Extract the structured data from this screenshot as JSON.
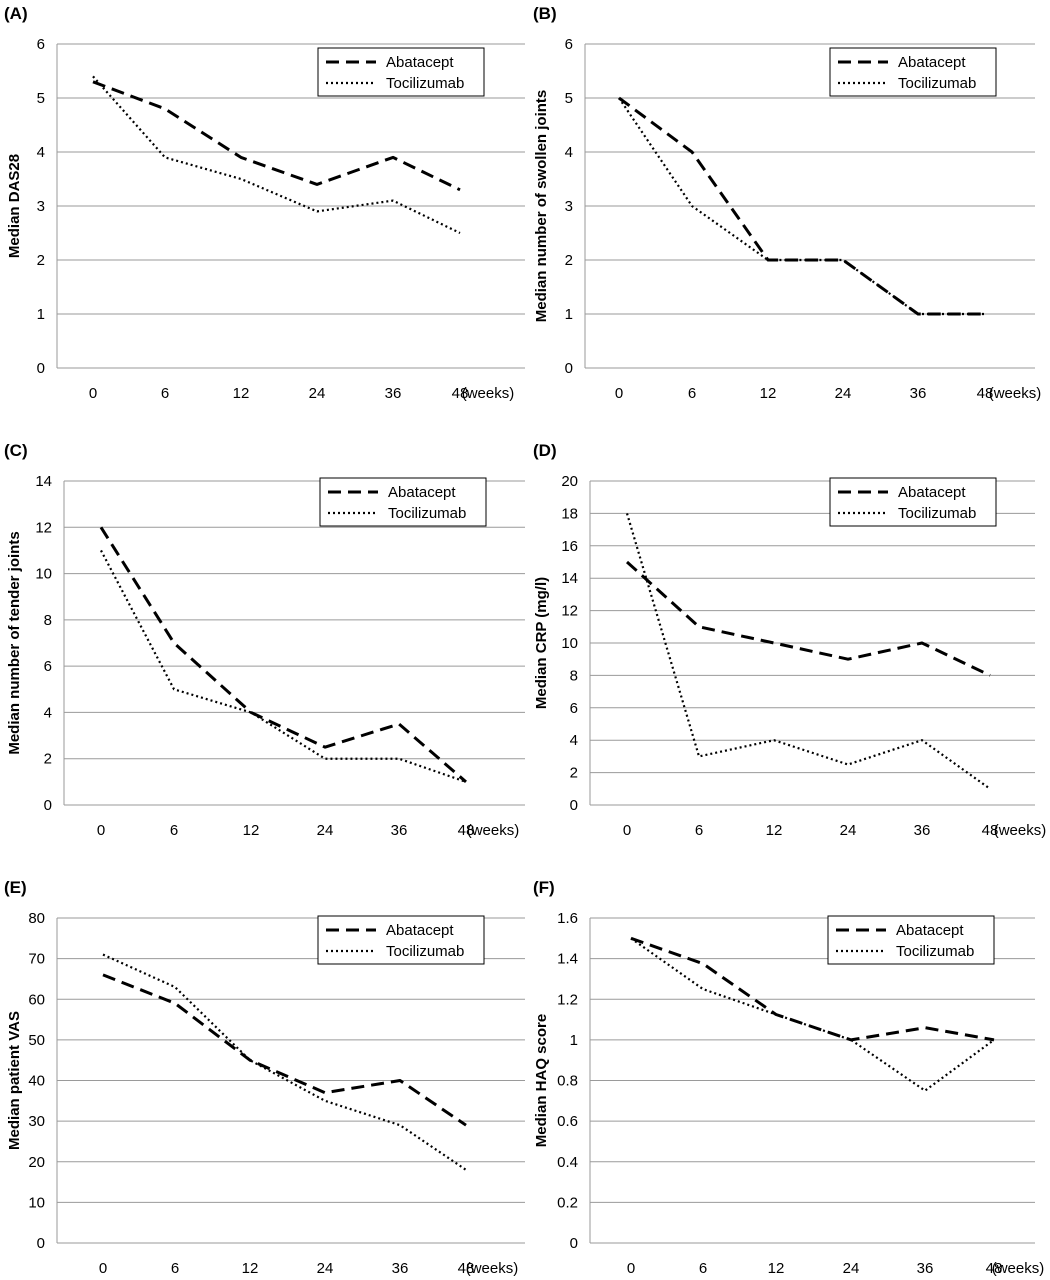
{
  "chart_data": [
    {
      "type": "line",
      "panel": "(A)",
      "ylabel": "Median DAS28",
      "x": [
        "0",
        "6",
        "12",
        "24",
        "36",
        "48"
      ],
      "x_unit": "(weeks)",
      "ylim": [
        0,
        6
      ],
      "yticks": [
        "0",
        "1",
        "2",
        "3",
        "4",
        "5",
        "6"
      ],
      "grid": true,
      "legend": "top-right",
      "series": [
        {
          "name": "Abatacept",
          "style": "dashed",
          "values": [
            5.3,
            4.8,
            3.9,
            3.4,
            3.9,
            3.3
          ]
        },
        {
          "name": "Tocilizumab",
          "style": "dotted",
          "values": [
            5.4,
            3.9,
            3.5,
            2.9,
            3.1,
            2.5
          ]
        }
      ]
    },
    {
      "type": "line",
      "panel": "(B)",
      "ylabel": "Median number  of swollen joints",
      "x": [
        "0",
        "6",
        "12",
        "24",
        "36",
        "48"
      ],
      "x_unit": "(weeks)",
      "ylim": [
        0,
        6
      ],
      "yticks": [
        "0",
        "1",
        "2",
        "3",
        "4",
        "5",
        "6"
      ],
      "grid": true,
      "legend": "top-right",
      "series": [
        {
          "name": "Abatacept",
          "style": "dashed",
          "values": [
            5,
            4,
            2,
            2,
            1,
            1
          ]
        },
        {
          "name": "Tocilizumab",
          "style": "dotted",
          "values": [
            5,
            3,
            2,
            2,
            1,
            1
          ]
        }
      ]
    },
    {
      "type": "line",
      "panel": "(C)",
      "ylabel": "Median number  of tender joints",
      "x": [
        "0",
        "6",
        "12",
        "24",
        "36",
        "48"
      ],
      "x_unit": "(weeks)",
      "ylim": [
        0,
        14
      ],
      "yticks": [
        "0",
        "2",
        "4",
        "6",
        "8",
        "10",
        "12",
        "14"
      ],
      "grid": true,
      "legend": "top-right",
      "series": [
        {
          "name": "Abatacept",
          "style": "dashed",
          "values": [
            12,
            7,
            4,
            2.5,
            3.5,
            1
          ]
        },
        {
          "name": "Tocilizumab",
          "style": "dotted",
          "values": [
            11,
            5,
            4,
            2,
            2,
            1
          ]
        }
      ]
    },
    {
      "type": "line",
      "panel": "(D)",
      "ylabel": "Median CRP  (mg/l)",
      "x": [
        "0",
        "6",
        "12",
        "24",
        "36",
        "48"
      ],
      "x_unit": "(weeks)",
      "ylim": [
        0,
        20
      ],
      "yticks": [
        "0",
        "2",
        "4",
        "6",
        "8",
        "10",
        "12",
        "14",
        "16",
        "18",
        "20"
      ],
      "grid": true,
      "legend": "top-right",
      "series": [
        {
          "name": "Abatacept",
          "style": "dashed",
          "values": [
            15,
            11,
            10,
            9,
            10,
            8
          ]
        },
        {
          "name": "Tocilizumab",
          "style": "dotted",
          "values": [
            18,
            3,
            4,
            2.5,
            4,
            1
          ]
        }
      ]
    },
    {
      "type": "line",
      "panel": "(E)",
      "ylabel": "Median patient VAS",
      "x": [
        "0",
        "6",
        "12",
        "24",
        "36",
        "48"
      ],
      "x_unit": "(weeks)",
      "ylim": [
        0,
        80
      ],
      "yticks": [
        "0",
        "10",
        "20",
        "30",
        "40",
        "50",
        "60",
        "70",
        "80"
      ],
      "grid": true,
      "legend": "top-right",
      "series": [
        {
          "name": "Abatacept",
          "style": "dashed",
          "values": [
            66,
            59,
            45,
            37,
            40,
            29
          ]
        },
        {
          "name": "Tocilizumab",
          "style": "dotted",
          "values": [
            71,
            63,
            45,
            35,
            29,
            18
          ]
        }
      ]
    },
    {
      "type": "line",
      "panel": "(F)",
      "ylabel": "Median HAQ score",
      "x": [
        "0",
        "6",
        "12",
        "24",
        "36",
        "48"
      ],
      "x_unit": "(weeks)",
      "ylim": [
        0,
        1.6
      ],
      "yticks": [
        "0",
        "0.2",
        "0.4",
        "0.6",
        "0.8",
        "1",
        "1.2",
        "1.4",
        "1.6"
      ],
      "grid": true,
      "legend": "top-right",
      "series": [
        {
          "name": "Abatacept",
          "style": "dashed",
          "values": [
            1.5,
            1.375,
            1.125,
            1.0,
            1.06,
            1.0
          ]
        },
        {
          "name": "Tocilizumab",
          "style": "dotted",
          "values": [
            1.5,
            1.25,
            1.125,
            1.0,
            0.75,
            1.0
          ]
        }
      ]
    }
  ]
}
